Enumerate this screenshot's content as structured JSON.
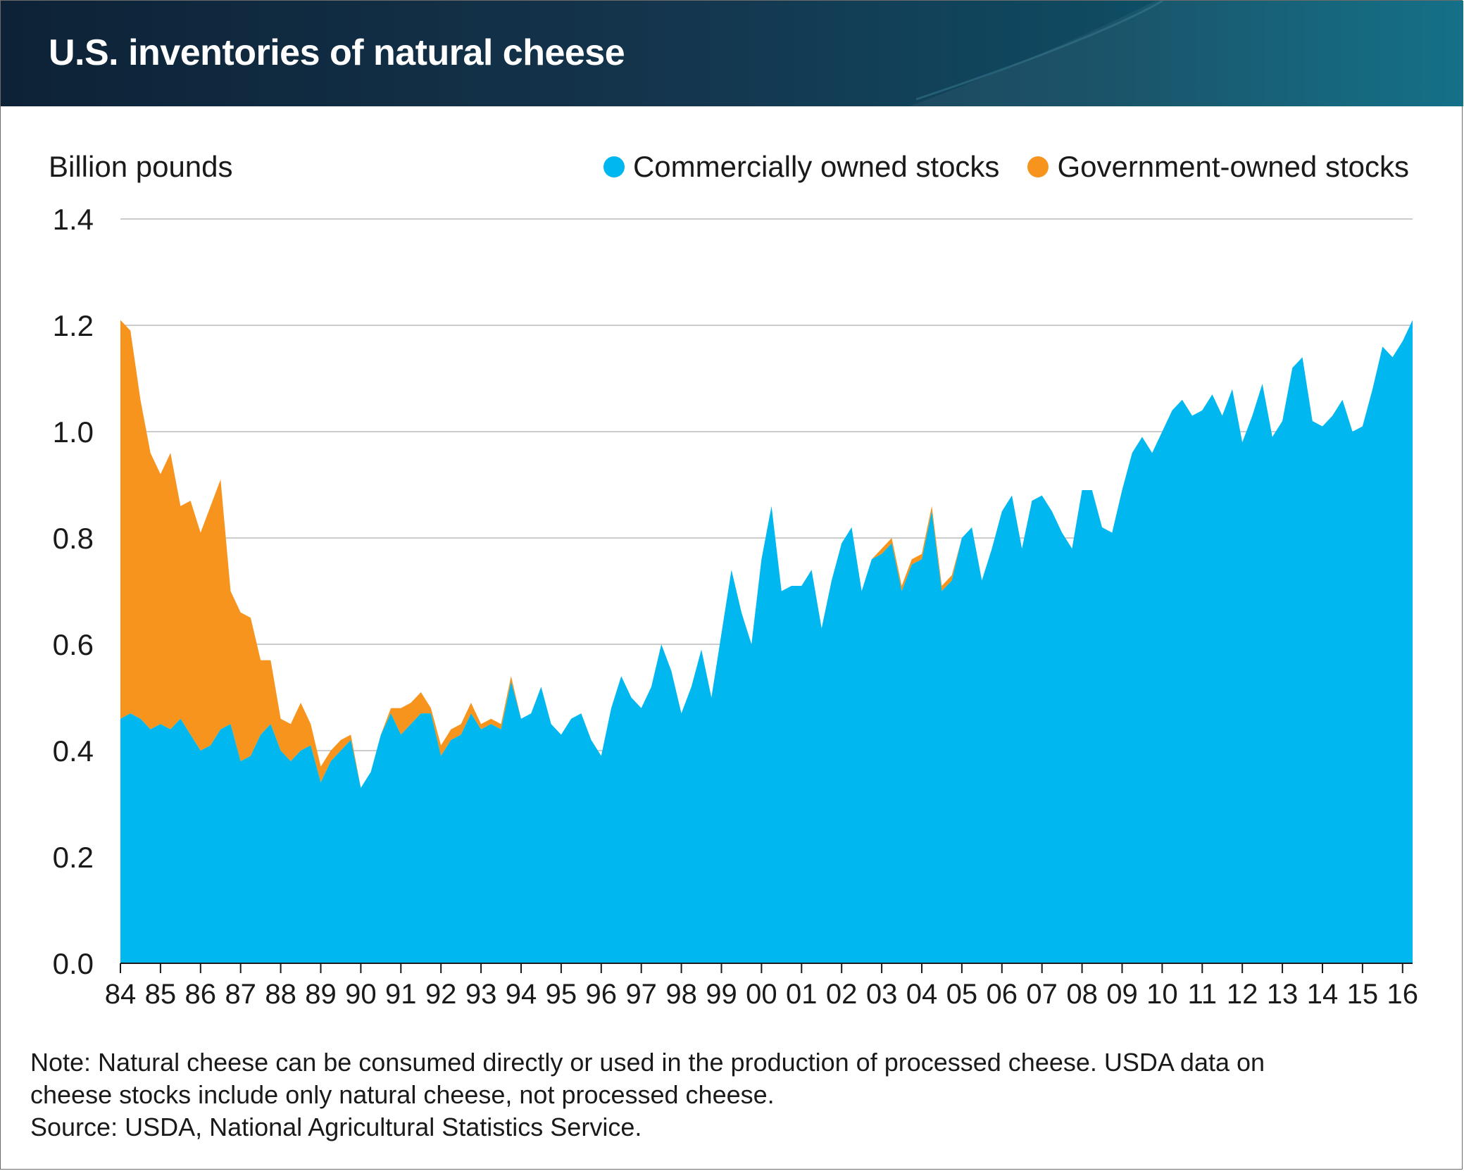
{
  "title": "U.S. inventories of natural cheese",
  "colors": {
    "commercial": "#00b7ef",
    "government": "#f7941d",
    "grid": "#cccccc",
    "header_dark": "#0d2236",
    "header_light": "#086a82"
  },
  "legend": {
    "commercial": "Commercially owned stocks",
    "government": "Government-owned stocks"
  },
  "note": {
    "line1": "Note: Natural cheese can be consumed directly or used in the production of processed cheese. USDA data on",
    "line2": "cheese stocks include only natural cheese, not processed cheese.",
    "source": "Source: USDA, National Agricultural Statistics Service."
  },
  "chart_data": {
    "type": "area",
    "stacked": true,
    "ylabel": "Billion pounds",
    "ylim": [
      0,
      1.4
    ],
    "yticks": [
      "0.0",
      "0.2",
      "0.4",
      "0.6",
      "0.8",
      "1.0",
      "1.2",
      "1.4"
    ],
    "xticks": [
      "84",
      "85",
      "86",
      "87",
      "88",
      "89",
      "90",
      "91",
      "92",
      "93",
      "94",
      "95",
      "96",
      "97",
      "98",
      "99",
      "00",
      "01",
      "02",
      "03",
      "04",
      "05",
      "06",
      "07",
      "08",
      "09",
      "10",
      "11",
      "12",
      "13",
      "14",
      "15",
      "16"
    ],
    "x": [
      1984.0,
      1984.25,
      1984.5,
      1984.75,
      1985.0,
      1985.25,
      1985.5,
      1985.75,
      1986.0,
      1986.25,
      1986.5,
      1986.75,
      1987.0,
      1987.25,
      1987.5,
      1987.75,
      1988.0,
      1988.25,
      1988.5,
      1988.75,
      1989.0,
      1989.25,
      1989.5,
      1989.75,
      1990.0,
      1990.25,
      1990.5,
      1990.75,
      1991.0,
      1991.25,
      1991.5,
      1991.75,
      1992.0,
      1992.25,
      1992.5,
      1992.75,
      1993.0,
      1993.25,
      1993.5,
      1993.75,
      1994.0,
      1994.25,
      1994.5,
      1994.75,
      1995.0,
      1995.25,
      1995.5,
      1995.75,
      1996.0,
      1996.25,
      1996.5,
      1996.75,
      1997.0,
      1997.25,
      1997.5,
      1997.75,
      1998.0,
      1998.25,
      1998.5,
      1998.75,
      1999.0,
      1999.25,
      1999.5,
      1999.75,
      2000.0,
      2000.25,
      2000.5,
      2000.75,
      2001.0,
      2001.25,
      2001.5,
      2001.75,
      2002.0,
      2002.25,
      2002.5,
      2002.75,
      2003.0,
      2003.25,
      2003.5,
      2003.75,
      2004.0,
      2004.25,
      2004.5,
      2004.75,
      2005.0,
      2005.25,
      2005.5,
      2005.75,
      2006.0,
      2006.25,
      2006.5,
      2006.75,
      2007.0,
      2007.25,
      2007.5,
      2007.75,
      2008.0,
      2008.25,
      2008.5,
      2008.75,
      2009.0,
      2009.25,
      2009.5,
      2009.75,
      2010.0,
      2010.25,
      2010.5,
      2010.75,
      2011.0,
      2011.25,
      2011.5,
      2011.75,
      2012.0,
      2012.25,
      2012.5,
      2012.75,
      2013.0,
      2013.25,
      2013.5,
      2013.75,
      2014.0,
      2014.25,
      2014.5,
      2014.75,
      2015.0,
      2015.25,
      2015.5,
      2015.75,
      2016.0,
      2016.25
    ],
    "series": [
      {
        "name": "Commercially owned stocks",
        "color": "#00b7ef",
        "values": [
          0.46,
          0.47,
          0.46,
          0.44,
          0.45,
          0.44,
          0.46,
          0.43,
          0.4,
          0.41,
          0.44,
          0.45,
          0.38,
          0.39,
          0.43,
          0.45,
          0.4,
          0.38,
          0.4,
          0.41,
          0.34,
          0.38,
          0.4,
          0.42,
          0.33,
          0.36,
          0.43,
          0.47,
          0.43,
          0.45,
          0.47,
          0.47,
          0.39,
          0.42,
          0.43,
          0.47,
          0.44,
          0.45,
          0.44,
          0.53,
          0.46,
          0.47,
          0.52,
          0.45,
          0.43,
          0.46,
          0.47,
          0.42,
          0.39,
          0.48,
          0.54,
          0.5,
          0.48,
          0.52,
          0.6,
          0.55,
          0.47,
          0.52,
          0.59,
          0.5,
          0.62,
          0.74,
          0.66,
          0.6,
          0.76,
          0.86,
          0.7,
          0.71,
          0.71,
          0.74,
          0.63,
          0.72,
          0.79,
          0.82,
          0.7,
          0.76,
          0.77,
          0.79,
          0.7,
          0.75,
          0.76,
          0.85,
          0.7,
          0.72,
          0.8,
          0.82,
          0.72,
          0.78,
          0.85,
          0.88,
          0.78,
          0.87,
          0.88,
          0.85,
          0.81,
          0.78,
          0.89,
          0.89,
          0.82,
          0.81,
          0.89,
          0.96,
          0.99,
          0.96,
          1.0,
          1.04,
          1.06,
          1.03,
          1.04,
          1.07,
          1.03,
          1.08,
          0.98,
          1.03,
          1.09,
          0.99,
          1.02,
          1.12,
          1.14,
          1.02,
          1.01,
          1.03,
          1.06,
          1.0,
          1.01,
          1.08,
          1.16,
          1.14,
          1.17,
          1.21
        ]
      },
      {
        "name": "Government-owned stocks",
        "color": "#f7941d",
        "values": [
          0.75,
          0.72,
          0.6,
          0.52,
          0.47,
          0.52,
          0.4,
          0.44,
          0.41,
          0.45,
          0.47,
          0.25,
          0.28,
          0.26,
          0.14,
          0.12,
          0.06,
          0.07,
          0.09,
          0.04,
          0.03,
          0.02,
          0.02,
          0.01,
          0.0,
          0.0,
          0.0,
          0.01,
          0.05,
          0.04,
          0.04,
          0.01,
          0.02,
          0.02,
          0.02,
          0.02,
          0.01,
          0.01,
          0.01,
          0.01,
          0.0,
          0.0,
          0.0,
          0.0,
          0.0,
          0.0,
          0.0,
          0.0,
          0.0,
          0.0,
          0.0,
          0.0,
          0.0,
          0.0,
          0.0,
          0.0,
          0.0,
          0.0,
          0.0,
          0.0,
          0.0,
          0.0,
          0.0,
          0.0,
          0.0,
          0.0,
          0.0,
          0.0,
          0.0,
          0.0,
          0.0,
          0.0,
          0.0,
          0.0,
          0.0,
          0.0,
          0.01,
          0.01,
          0.01,
          0.01,
          0.01,
          0.01,
          0.01,
          0.01,
          0.0,
          0.0,
          0.0,
          0.0,
          0.0,
          0.0,
          0.0,
          0.0,
          0.0,
          0.0,
          0.0,
          0.0,
          0.0,
          0.0,
          0.0,
          0.0,
          0.0,
          0.0,
          0.0,
          0.0,
          0.0,
          0.0,
          0.0,
          0.0,
          0.0,
          0.0,
          0.0,
          0.0,
          0.0,
          0.0,
          0.0,
          0.0,
          0.0,
          0.0,
          0.0,
          0.0,
          0.0,
          0.0,
          0.0,
          0.0,
          0.0,
          0.0,
          0.0,
          0.0,
          0.0,
          0.0
        ]
      }
    ],
    "grid": true,
    "legend_position": "top-right"
  }
}
